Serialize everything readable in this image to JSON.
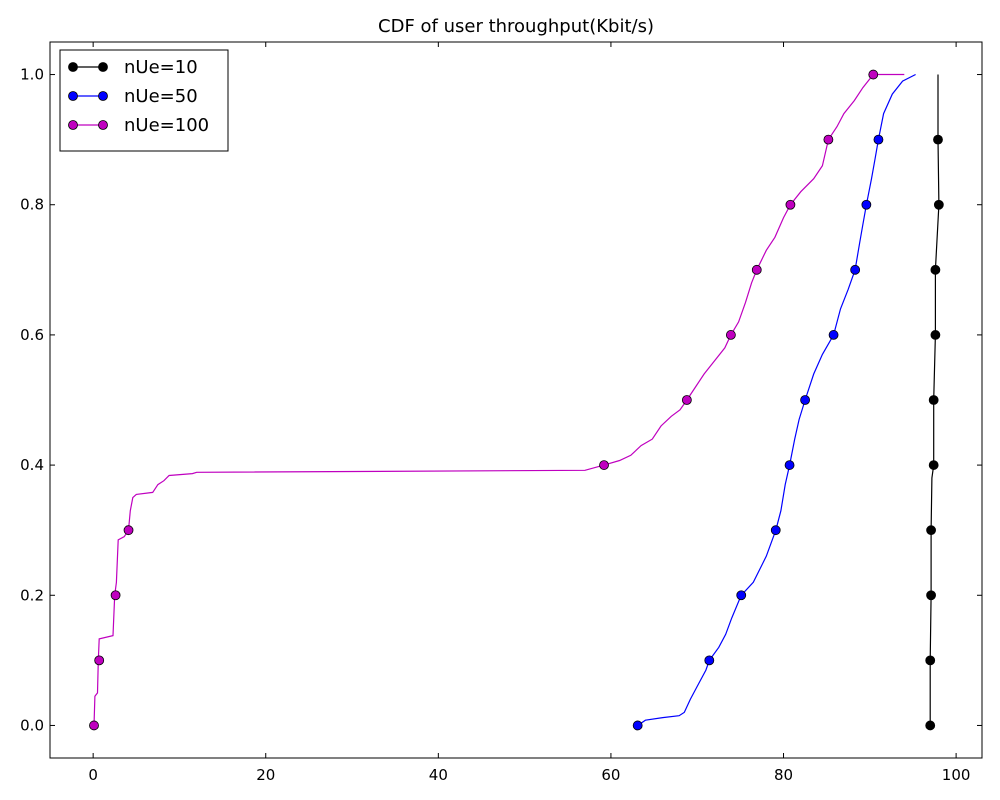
{
  "chart_data": {
    "type": "line",
    "title": "CDF of user throughput(Kbit/s)",
    "xlabel": "",
    "ylabel": "",
    "xlim": [
      -5,
      103
    ],
    "ylim": [
      -0.05,
      1.05
    ],
    "xticks": [
      0,
      20,
      40,
      60,
      80,
      100
    ],
    "xtick_labels": [
      "0",
      "20",
      "40",
      "60",
      "80",
      "100"
    ],
    "yticks": [
      0.0,
      0.2,
      0.4,
      0.6,
      0.8,
      1.0
    ],
    "ytick_labels": [
      "0.0",
      "0.2",
      "0.4",
      "0.6",
      "0.8",
      "1.0"
    ],
    "grid": false,
    "legend_position": "top-left",
    "series": [
      {
        "name": "nUe=10",
        "color": "#000000",
        "markers": [
          [
            97.0,
            0.0
          ],
          [
            97.0,
            0.1
          ],
          [
            97.1,
            0.2
          ],
          [
            97.1,
            0.3
          ],
          [
            97.4,
            0.4
          ],
          [
            97.4,
            0.5
          ],
          [
            97.6,
            0.6
          ],
          [
            97.6,
            0.7
          ],
          [
            98.0,
            0.8
          ],
          [
            97.9,
            0.9
          ]
        ],
        "line": [
          [
            97.0,
            0.0
          ],
          [
            97.0,
            0.1
          ],
          [
            97.1,
            0.2
          ],
          [
            97.1,
            0.3
          ],
          [
            97.2,
            0.38
          ],
          [
            97.4,
            0.4
          ],
          [
            97.4,
            0.5
          ],
          [
            97.6,
            0.6
          ],
          [
            97.6,
            0.7
          ],
          [
            98.0,
            0.8
          ],
          [
            97.9,
            0.9
          ],
          [
            97.9,
            1.0
          ]
        ]
      },
      {
        "name": "nUe=50",
        "color": "#0000ff",
        "markers": [
          [
            63.1,
            0.0
          ],
          [
            71.4,
            0.1
          ],
          [
            75.1,
            0.2
          ],
          [
            79.1,
            0.3
          ],
          [
            80.7,
            0.4
          ],
          [
            82.5,
            0.5
          ],
          [
            85.8,
            0.6
          ],
          [
            88.3,
            0.7
          ],
          [
            89.6,
            0.8
          ],
          [
            91.0,
            0.9
          ]
        ],
        "line": [
          [
            63.1,
            0.0
          ],
          [
            64.0,
            0.008
          ],
          [
            66.0,
            0.012
          ],
          [
            67.9,
            0.015
          ],
          [
            68.5,
            0.02
          ],
          [
            69.2,
            0.04
          ],
          [
            70.0,
            0.06
          ],
          [
            71.0,
            0.085
          ],
          [
            71.4,
            0.1
          ],
          [
            72.5,
            0.12
          ],
          [
            73.3,
            0.14
          ],
          [
            74.0,
            0.165
          ],
          [
            75.1,
            0.2
          ],
          [
            76.5,
            0.22
          ],
          [
            78.0,
            0.26
          ],
          [
            79.1,
            0.3
          ],
          [
            79.7,
            0.33
          ],
          [
            80.2,
            0.37
          ],
          [
            80.7,
            0.4
          ],
          [
            81.3,
            0.44
          ],
          [
            81.8,
            0.47
          ],
          [
            82.5,
            0.5
          ],
          [
            83.5,
            0.54
          ],
          [
            84.5,
            0.57
          ],
          [
            85.8,
            0.6
          ],
          [
            86.6,
            0.64
          ],
          [
            87.5,
            0.67
          ],
          [
            88.3,
            0.7
          ],
          [
            88.8,
            0.74
          ],
          [
            89.2,
            0.77
          ],
          [
            89.6,
            0.8
          ],
          [
            90.2,
            0.84
          ],
          [
            90.6,
            0.87
          ],
          [
            91.0,
            0.9
          ],
          [
            91.6,
            0.94
          ],
          [
            92.6,
            0.97
          ],
          [
            93.8,
            0.99
          ],
          [
            95.3,
            1.0
          ]
        ]
      },
      {
        "name": "nUe=100",
        "color": "#bf00bf",
        "markers": [
          [
            0.1,
            0.0
          ],
          [
            0.7,
            0.1
          ],
          [
            2.6,
            0.2
          ],
          [
            4.1,
            0.3
          ],
          [
            59.2,
            0.4
          ],
          [
            68.8,
            0.5
          ],
          [
            73.9,
            0.6
          ],
          [
            76.9,
            0.7
          ],
          [
            80.8,
            0.8
          ],
          [
            85.2,
            0.9
          ],
          [
            90.4,
            1.0
          ]
        ],
        "line": [
          [
            0.1,
            0.0
          ],
          [
            0.2,
            0.045
          ],
          [
            0.5,
            0.05
          ],
          [
            0.6,
            0.1
          ],
          [
            0.7,
            0.133
          ],
          [
            2.3,
            0.138
          ],
          [
            2.5,
            0.2
          ],
          [
            2.7,
            0.22
          ],
          [
            2.9,
            0.285
          ],
          [
            3.6,
            0.29
          ],
          [
            4.1,
            0.3
          ],
          [
            4.3,
            0.33
          ],
          [
            4.6,
            0.35
          ],
          [
            5.0,
            0.355
          ],
          [
            6.9,
            0.358
          ],
          [
            7.5,
            0.37
          ],
          [
            8.2,
            0.376
          ],
          [
            8.8,
            0.384
          ],
          [
            11.5,
            0.387
          ],
          [
            12.0,
            0.389
          ],
          [
            57.0,
            0.392
          ],
          [
            59.2,
            0.4
          ],
          [
            61.0,
            0.407
          ],
          [
            62.3,
            0.415
          ],
          [
            63.5,
            0.43
          ],
          [
            64.8,
            0.44
          ],
          [
            65.8,
            0.46
          ],
          [
            67.0,
            0.475
          ],
          [
            68.0,
            0.485
          ],
          [
            68.8,
            0.5
          ],
          [
            69.8,
            0.52
          ],
          [
            70.8,
            0.54
          ],
          [
            72.0,
            0.56
          ],
          [
            73.2,
            0.58
          ],
          [
            73.9,
            0.6
          ],
          [
            74.8,
            0.62
          ],
          [
            75.6,
            0.65
          ],
          [
            76.3,
            0.68
          ],
          [
            76.9,
            0.7
          ],
          [
            78.0,
            0.73
          ],
          [
            79.0,
            0.75
          ],
          [
            80.0,
            0.78
          ],
          [
            80.8,
            0.8
          ],
          [
            82.0,
            0.82
          ],
          [
            83.5,
            0.84
          ],
          [
            84.5,
            0.86
          ],
          [
            85.2,
            0.9
          ],
          [
            86.2,
            0.92
          ],
          [
            87.0,
            0.94
          ],
          [
            88.2,
            0.96
          ],
          [
            89.2,
            0.98
          ],
          [
            90.4,
            1.0
          ],
          [
            94.0,
            1.0
          ]
        ]
      }
    ]
  }
}
